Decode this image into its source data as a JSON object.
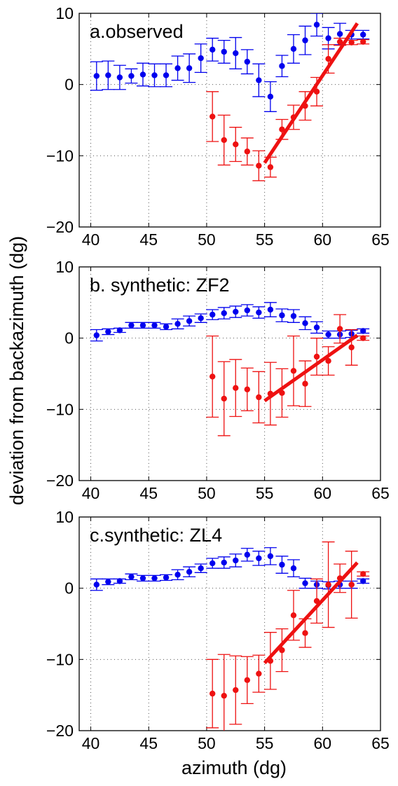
{
  "figure": {
    "ylabel": "deviation from backazimuth (dg)",
    "xlabel": "azimuth (dg)"
  },
  "colors": {
    "blue": "#0000ee",
    "red": "#ee1111"
  },
  "chart_data": [
    {
      "type": "scatter",
      "title": "a.observed",
      "xlim": [
        39,
        65
      ],
      "ylim": [
        -20,
        10
      ],
      "xticks": [
        "40",
        "45",
        "50",
        "55",
        "60",
        "65"
      ],
      "yticks": [
        "−20",
        "−10",
        "0",
        "10"
      ],
      "grid": true,
      "series": [
        {
          "color": "blue",
          "x": [
            40.5,
            41.5,
            42.5,
            43.5,
            44.5,
            45.5,
            46.5,
            47.5,
            48.5,
            49.5,
            50.5,
            51.5,
            52.5,
            53.5,
            54.5,
            55.5,
            56.5,
            57.5,
            58.5,
            59.5,
            60.5,
            61.5,
            62.5,
            63.5
          ],
          "y": [
            1.2,
            1.3,
            1.0,
            1.2,
            1.4,
            1.3,
            1.3,
            2.3,
            2.3,
            3.7,
            4.9,
            4.6,
            4.4,
            3.2,
            0.6,
            -1.7,
            2.6,
            5.0,
            6.2,
            8.4,
            6.5,
            7.1,
            7.0,
            7.0
          ],
          "err": [
            2.0,
            2.0,
            1.7,
            1.0,
            1.6,
            1.6,
            1.6,
            1.7,
            2.0,
            2.0,
            1.6,
            1.6,
            2.2,
            1.7,
            2.3,
            2.1,
            1.5,
            2.0,
            2.0,
            1.6,
            1.5,
            1.5,
            0.6,
            0.6
          ]
        },
        {
          "color": "red",
          "x": [
            50.5,
            51.5,
            52.5,
            53.5,
            54.5,
            55.5,
            56.5,
            57.5,
            58.5,
            59.5,
            60.5,
            61.5,
            62.5,
            63.5
          ],
          "y": [
            -4.5,
            -7.8,
            -8.4,
            -9.4,
            -11.4,
            -11.6,
            -6.3,
            -4.6,
            -3.0,
            -1.0,
            3.6,
            6.0,
            5.9,
            6.0
          ],
          "err": [
            3.5,
            3.5,
            2.4,
            1.9,
            2.1,
            1.4,
            1.4,
            1.7,
            2.0,
            2.0,
            2.0,
            0.5,
            0.3,
            0.3
          ]
        }
      ],
      "fit": {
        "color": "red",
        "x": [
          55,
          63
        ],
        "y": [
          -11,
          8.6
        ]
      }
    },
    {
      "type": "scatter",
      "title": "b. synthetic: ZF2",
      "xlim": [
        39,
        65
      ],
      "ylim": [
        -20,
        10
      ],
      "xticks": [
        "40",
        "45",
        "50",
        "55",
        "60",
        "65"
      ],
      "yticks": [
        "−20",
        "−10",
        "0",
        "10"
      ],
      "grid": true,
      "series": [
        {
          "color": "blue",
          "x": [
            40.5,
            41.5,
            42.5,
            43.5,
            44.5,
            45.5,
            46.5,
            47.5,
            48.5,
            49.5,
            50.5,
            51.5,
            52.5,
            53.5,
            54.5,
            55.5,
            56.5,
            57.5,
            58.5,
            59.5,
            60.5,
            61.5,
            62.5,
            63.5
          ],
          "y": [
            0.4,
            0.9,
            1.1,
            1.8,
            1.8,
            1.8,
            1.6,
            2.0,
            2.4,
            2.8,
            3.3,
            3.5,
            3.7,
            3.9,
            3.6,
            4.0,
            3.2,
            3.1,
            2.1,
            1.5,
            0.5,
            0.5,
            0.6,
            1.0
          ],
          "err": [
            0.8,
            0.4,
            0.3,
            0.4,
            0.4,
            0.4,
            0.4,
            0.7,
            0.7,
            0.6,
            0.7,
            0.8,
            0.8,
            0.8,
            0.8,
            1.0,
            0.9,
            0.9,
            0.9,
            0.8,
            0.5,
            0.5,
            0.5,
            0.3
          ]
        },
        {
          "color": "red",
          "x": [
            50.5,
            51.5,
            52.5,
            53.5,
            54.5,
            55.5,
            56.5,
            57.5,
            58.5,
            59.5,
            60.5,
            61.5,
            62.5,
            63.5
          ],
          "y": [
            -5.4,
            -8.5,
            -7.0,
            -7.2,
            -8.3,
            -7.8,
            -7.7,
            -4.6,
            -6.4,
            -2.6,
            -3.2,
            1.3,
            -1.3,
            0.0
          ],
          "err": [
            5.7,
            5.2,
            4.0,
            3.0,
            3.6,
            4.4,
            3.4,
            4.9,
            3.2,
            2.6,
            2.0,
            2.0,
            2.5,
            0.3
          ]
        }
      ],
      "fit": {
        "color": "red",
        "x": [
          55,
          63
        ],
        "y": [
          -8.8,
          0.4
        ]
      }
    },
    {
      "type": "scatter",
      "title": "c.synthetic: ZL4",
      "xlim": [
        39,
        65
      ],
      "ylim": [
        -20,
        10
      ],
      "xticks": [
        "40",
        "45",
        "50",
        "55",
        "60",
        "65"
      ],
      "yticks": [
        "−20",
        "−10",
        "0",
        "10"
      ],
      "grid": true,
      "series": [
        {
          "color": "blue",
          "x": [
            40.5,
            41.5,
            42.5,
            43.5,
            44.5,
            45.5,
            46.5,
            47.5,
            48.5,
            49.5,
            50.5,
            51.5,
            52.5,
            53.5,
            54.5,
            55.5,
            56.5,
            57.5,
            58.5,
            59.5,
            60.5,
            61.5,
            62.5,
            63.5
          ],
          "y": [
            0.5,
            0.9,
            1.0,
            1.6,
            1.4,
            1.4,
            1.5,
            1.9,
            2.3,
            2.8,
            3.5,
            3.6,
            3.9,
            4.7,
            4.2,
            4.5,
            3.3,
            2.8,
            0.7,
            0.5,
            0.4,
            0.5,
            0.5,
            1.0
          ],
          "err": [
            0.8,
            0.4,
            0.3,
            0.4,
            0.4,
            0.4,
            0.4,
            0.7,
            0.7,
            0.6,
            0.7,
            0.8,
            0.9,
            0.9,
            1.0,
            1.2,
            1.2,
            1.2,
            0.7,
            0.5,
            0.5,
            0.5,
            0.5,
            0.3
          ]
        },
        {
          "color": "red",
          "x": [
            50.5,
            51.5,
            52.5,
            53.5,
            54.5,
            55.5,
            56.5,
            57.5,
            58.5,
            59.5,
            60.5,
            61.5,
            62.5,
            63.5
          ],
          "y": [
            -14.8,
            -15.1,
            -14.3,
            -12.9,
            -12.0,
            -10.2,
            -8.7,
            -3.8,
            -6.3,
            -1.8,
            0.5,
            1.4,
            0.5,
            2.0
          ],
          "err": [
            4.8,
            5.8,
            4.8,
            3.3,
            2.6,
            4.0,
            3.0,
            3.5,
            2.0,
            3.1,
            6.0,
            2.0,
            4.7,
            0.3
          ]
        }
      ],
      "fit": {
        "color": "red",
        "x": [
          55,
          63
        ],
        "y": [
          -10.5,
          3.6
        ]
      }
    }
  ]
}
